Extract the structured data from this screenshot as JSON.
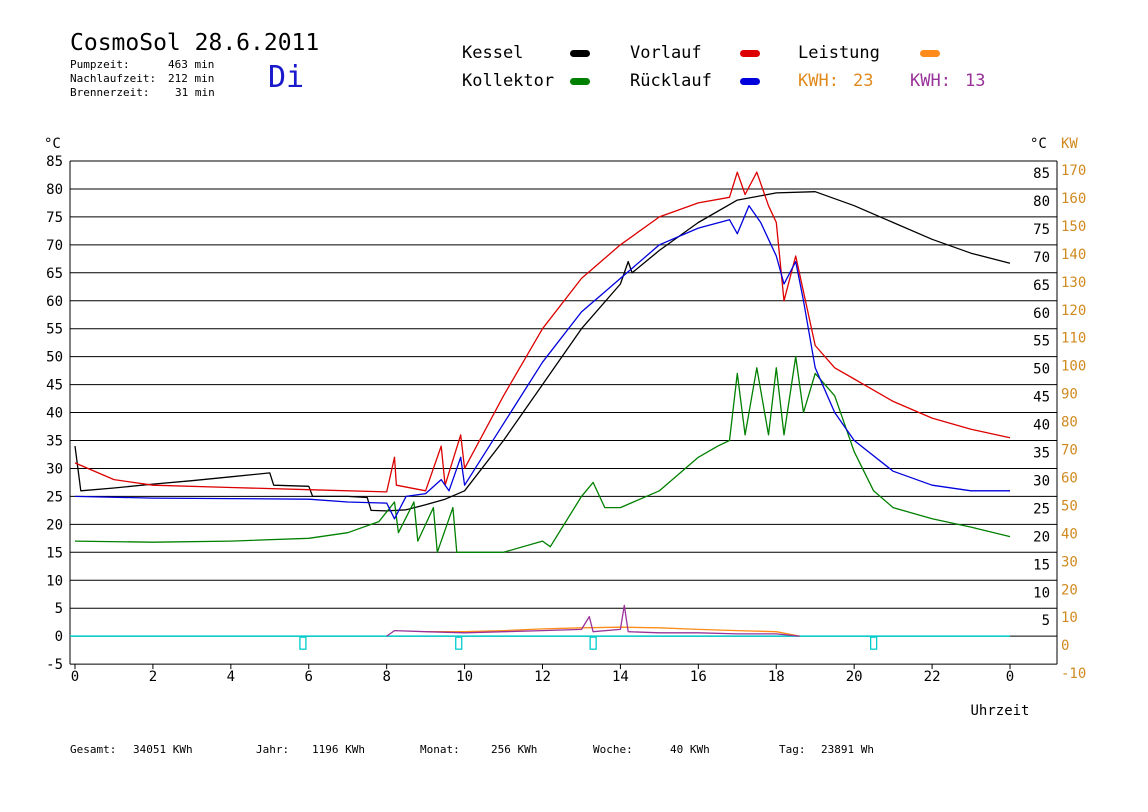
{
  "header": {
    "title": "CosmoSol 28.6.2011",
    "weekday": "Di",
    "stats": [
      {
        "label": "Pumpzeit:",
        "value": "463 min"
      },
      {
        "label": "Nachlaufzeit:",
        "value": "212 min"
      },
      {
        "label": "Brennerzeit:",
        "value": "31 min"
      }
    ]
  },
  "legend": {
    "kessel": {
      "label": "Kessel",
      "color": "#000000"
    },
    "vorlauf": {
      "label": "Vorlauf",
      "color": "#dd0000"
    },
    "leistung": {
      "label": "Leistung",
      "color": "#ff8c1a"
    },
    "kollektor": {
      "label": "Kollektor",
      "color": "#008000"
    },
    "ruecklauf": {
      "label": "Rücklauf",
      "color": "#0000dd"
    },
    "kwh1": {
      "label": "KWH:",
      "value": "23",
      "color": "#e08a1e"
    },
    "kwh2": {
      "label": "KWH:",
      "value": "13",
      "color": "#993399"
    }
  },
  "footer": {
    "gesamt_label": "Gesamt:",
    "gesamt_value": "34051 KWh",
    "jahr_label": "Jahr:",
    "jahr_value": "1196 KWh",
    "monat_label": "Monat:",
    "monat_value": "256 KWh",
    "woche_label": "Woche:",
    "woche_value": "40 KWh",
    "tag_label": "Tag:",
    "tag_value": "23891 Wh"
  },
  "chart_data": {
    "type": "line",
    "xlabel": "Uhrzeit",
    "x_ticks": [
      "0",
      "2",
      "4",
      "6",
      "8",
      "10",
      "12",
      "14",
      "16",
      "18",
      "20",
      "22",
      "0"
    ],
    "y_left_unit": "°C",
    "y_right_unit": "KW",
    "y_left_ticks": [
      "85",
      "80",
      "75",
      "70",
      "65",
      "60",
      "55",
      "50",
      "45",
      "40",
      "35",
      "30",
      "25",
      "20",
      "15",
      "10",
      "5",
      "0",
      "-5"
    ],
    "y_right_temp_ticks": [
      "85",
      "80",
      "75",
      "70",
      "65",
      "60",
      "55",
      "50",
      "45",
      "40",
      "35",
      "30",
      "25",
      "20",
      "15",
      "10",
      "5"
    ],
    "y_right_kw_ticks": [
      "170",
      "160",
      "150",
      "140",
      "130",
      "120",
      "110",
      "100",
      "90",
      "80",
      "70",
      "60",
      "50",
      "40",
      "30",
      "20",
      "10",
      "0",
      "-10"
    ],
    "xlim": [
      0,
      24
    ],
    "ylim": [
      -5,
      85
    ],
    "grid": true,
    "series": [
      {
        "name": "Kessel",
        "color": "#000000",
        "points": [
          [
            0,
            34
          ],
          [
            0.15,
            26
          ],
          [
            1,
            26.5
          ],
          [
            2,
            27.2
          ],
          [
            3,
            27.8
          ],
          [
            4,
            28.5
          ],
          [
            5,
            29.2
          ],
          [
            5.1,
            27
          ],
          [
            6,
            26.8
          ],
          [
            6.1,
            25
          ],
          [
            7,
            25
          ],
          [
            7.5,
            24.8
          ],
          [
            7.6,
            22.5
          ],
          [
            8,
            22.4
          ],
          [
            8.5,
            22.6
          ],
          [
            9,
            23.5
          ],
          [
            9.5,
            24.5
          ],
          [
            10,
            26
          ],
          [
            11,
            35
          ],
          [
            12,
            45
          ],
          [
            13,
            55
          ],
          [
            14,
            63
          ],
          [
            14.2,
            67
          ],
          [
            14.3,
            65
          ],
          [
            15,
            69
          ],
          [
            16,
            74
          ],
          [
            17,
            78
          ],
          [
            18,
            79.3
          ],
          [
            19,
            79.5
          ],
          [
            20,
            77
          ],
          [
            21,
            74
          ],
          [
            22,
            71
          ],
          [
            23,
            68.5
          ],
          [
            24,
            66.7
          ]
        ]
      },
      {
        "name": "Vorlauf",
        "color": "#dd0000",
        "points": [
          [
            0,
            31
          ],
          [
            1,
            28
          ],
          [
            2,
            27
          ],
          [
            4,
            26.6
          ],
          [
            6,
            26.2
          ],
          [
            8,
            25.8
          ],
          [
            8.2,
            32
          ],
          [
            8.25,
            27
          ],
          [
            9,
            26
          ],
          [
            9.4,
            34
          ],
          [
            9.5,
            27
          ],
          [
            9.9,
            36
          ],
          [
            10,
            30
          ],
          [
            11,
            43
          ],
          [
            12,
            55
          ],
          [
            13,
            64
          ],
          [
            14,
            70
          ],
          [
            15,
            75
          ],
          [
            16,
            77.5
          ],
          [
            16.8,
            78.5
          ],
          [
            17,
            83
          ],
          [
            17.2,
            79
          ],
          [
            17.5,
            83
          ],
          [
            17.8,
            77
          ],
          [
            18,
            74
          ],
          [
            18.2,
            60
          ],
          [
            18.5,
            68
          ],
          [
            19,
            52
          ],
          [
            19.5,
            48
          ],
          [
            20,
            46
          ],
          [
            21,
            42
          ],
          [
            22,
            39
          ],
          [
            23,
            37
          ],
          [
            24,
            35.5
          ]
        ]
      },
      {
        "name": "Kollektor",
        "color": "#008000",
        "points": [
          [
            0,
            17
          ],
          [
            2,
            16.8
          ],
          [
            4,
            17
          ],
          [
            6,
            17.5
          ],
          [
            7,
            18.5
          ],
          [
            7.8,
            20.5
          ],
          [
            8.2,
            24
          ],
          [
            8.3,
            18.5
          ],
          [
            8.7,
            24
          ],
          [
            8.8,
            17
          ],
          [
            9.2,
            23
          ],
          [
            9.3,
            15
          ],
          [
            9.7,
            23
          ],
          [
            9.8,
            15
          ],
          [
            10,
            15
          ],
          [
            11,
            15
          ],
          [
            12,
            17
          ],
          [
            12.2,
            16
          ],
          [
            13,
            25
          ],
          [
            13.3,
            27.5
          ],
          [
            13.6,
            23
          ],
          [
            14,
            23
          ],
          [
            15,
            26
          ],
          [
            15.5,
            29
          ],
          [
            16,
            32
          ],
          [
            16.5,
            34
          ],
          [
            16.8,
            35
          ],
          [
            17,
            47
          ],
          [
            17.2,
            36
          ],
          [
            17.5,
            48
          ],
          [
            17.8,
            36
          ],
          [
            18,
            48
          ],
          [
            18.2,
            36
          ],
          [
            18.5,
            50
          ],
          [
            18.7,
            40
          ],
          [
            19,
            47
          ],
          [
            19.5,
            43
          ],
          [
            20,
            33
          ],
          [
            20.5,
            26
          ],
          [
            21,
            23
          ],
          [
            22,
            21
          ],
          [
            23,
            19.5
          ],
          [
            24,
            17.8
          ]
        ]
      },
      {
        "name": "Rücklauf",
        "color": "#0000dd",
        "points": [
          [
            0,
            25
          ],
          [
            2,
            24.7
          ],
          [
            4,
            24.6
          ],
          [
            6,
            24.5
          ],
          [
            7,
            24
          ],
          [
            8,
            23.8
          ],
          [
            8.2,
            21
          ],
          [
            8.5,
            25
          ],
          [
            9,
            25.5
          ],
          [
            9.4,
            28
          ],
          [
            9.6,
            26
          ],
          [
            9.9,
            32
          ],
          [
            10,
            27
          ],
          [
            11,
            38
          ],
          [
            12,
            49
          ],
          [
            13,
            58
          ],
          [
            13.5,
            61
          ],
          [
            14,
            64
          ],
          [
            15,
            70
          ],
          [
            16,
            73
          ],
          [
            16.8,
            74.5
          ],
          [
            17,
            72
          ],
          [
            17.3,
            77
          ],
          [
            17.6,
            74
          ],
          [
            18,
            68
          ],
          [
            18.2,
            63
          ],
          [
            18.5,
            67
          ],
          [
            18.7,
            60
          ],
          [
            19,
            48
          ],
          [
            19.5,
            40
          ],
          [
            20,
            35
          ],
          [
            21,
            29.5
          ],
          [
            22,
            27
          ],
          [
            23,
            26
          ],
          [
            24,
            26
          ]
        ]
      },
      {
        "name": "Leistung",
        "color": "#ff8c1a",
        "points": [
          [
            9,
            0.8
          ],
          [
            10,
            0.8
          ],
          [
            11,
            1
          ],
          [
            12,
            1.3
          ],
          [
            13,
            1.5
          ],
          [
            14,
            1.6
          ],
          [
            15,
            1.5
          ],
          [
            16,
            1.2
          ],
          [
            17,
            1
          ],
          [
            18,
            0.8
          ],
          [
            18.6,
            0
          ]
        ]
      },
      {
        "name": "KWH 13",
        "color": "#993399",
        "points": [
          [
            8,
            0
          ],
          [
            8.2,
            1
          ],
          [
            9,
            0.8
          ],
          [
            10,
            0.6
          ],
          [
            11,
            0.8
          ],
          [
            12,
            1
          ],
          [
            13,
            1.2
          ],
          [
            13.2,
            3.5
          ],
          [
            13.3,
            0.8
          ],
          [
            14,
            1.2
          ],
          [
            14.1,
            5.5
          ],
          [
            14.2,
            0.8
          ],
          [
            15,
            0.6
          ],
          [
            16,
            0.6
          ],
          [
            17,
            0.4
          ],
          [
            18,
            0.4
          ],
          [
            18.6,
            0
          ]
        ]
      }
    ]
  }
}
